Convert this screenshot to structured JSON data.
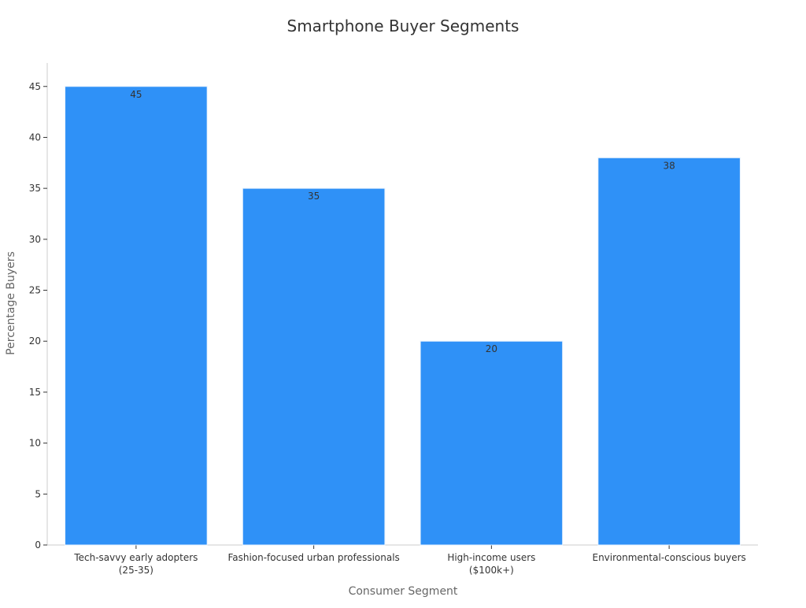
{
  "chart_data": {
    "type": "bar",
    "title": "Smartphone Buyer Segments",
    "xlabel": "Consumer Segment",
    "ylabel": "Percentage Buyers",
    "categories": [
      [
        "Tech-savvy early adopters",
        "(25-35)"
      ],
      [
        "Fashion-focused urban professionals"
      ],
      [
        "High-income users",
        "($100k+)"
      ],
      [
        "Environmental-conscious buyers"
      ]
    ],
    "values": [
      45,
      35,
      20,
      38
    ],
    "data_labels": [
      "45",
      "35",
      "20",
      "38"
    ],
    "yticks": [
      0,
      5,
      10,
      15,
      20,
      25,
      30,
      35,
      40,
      45
    ],
    "ylim": [
      0,
      47.3
    ],
    "grid": false,
    "legend": "none",
    "colors": {
      "bar": "#2f91f7",
      "bar_edge": "#e6f1fd",
      "axis": "#cccccc",
      "text": "#333333",
      "label": "#666666"
    }
  }
}
